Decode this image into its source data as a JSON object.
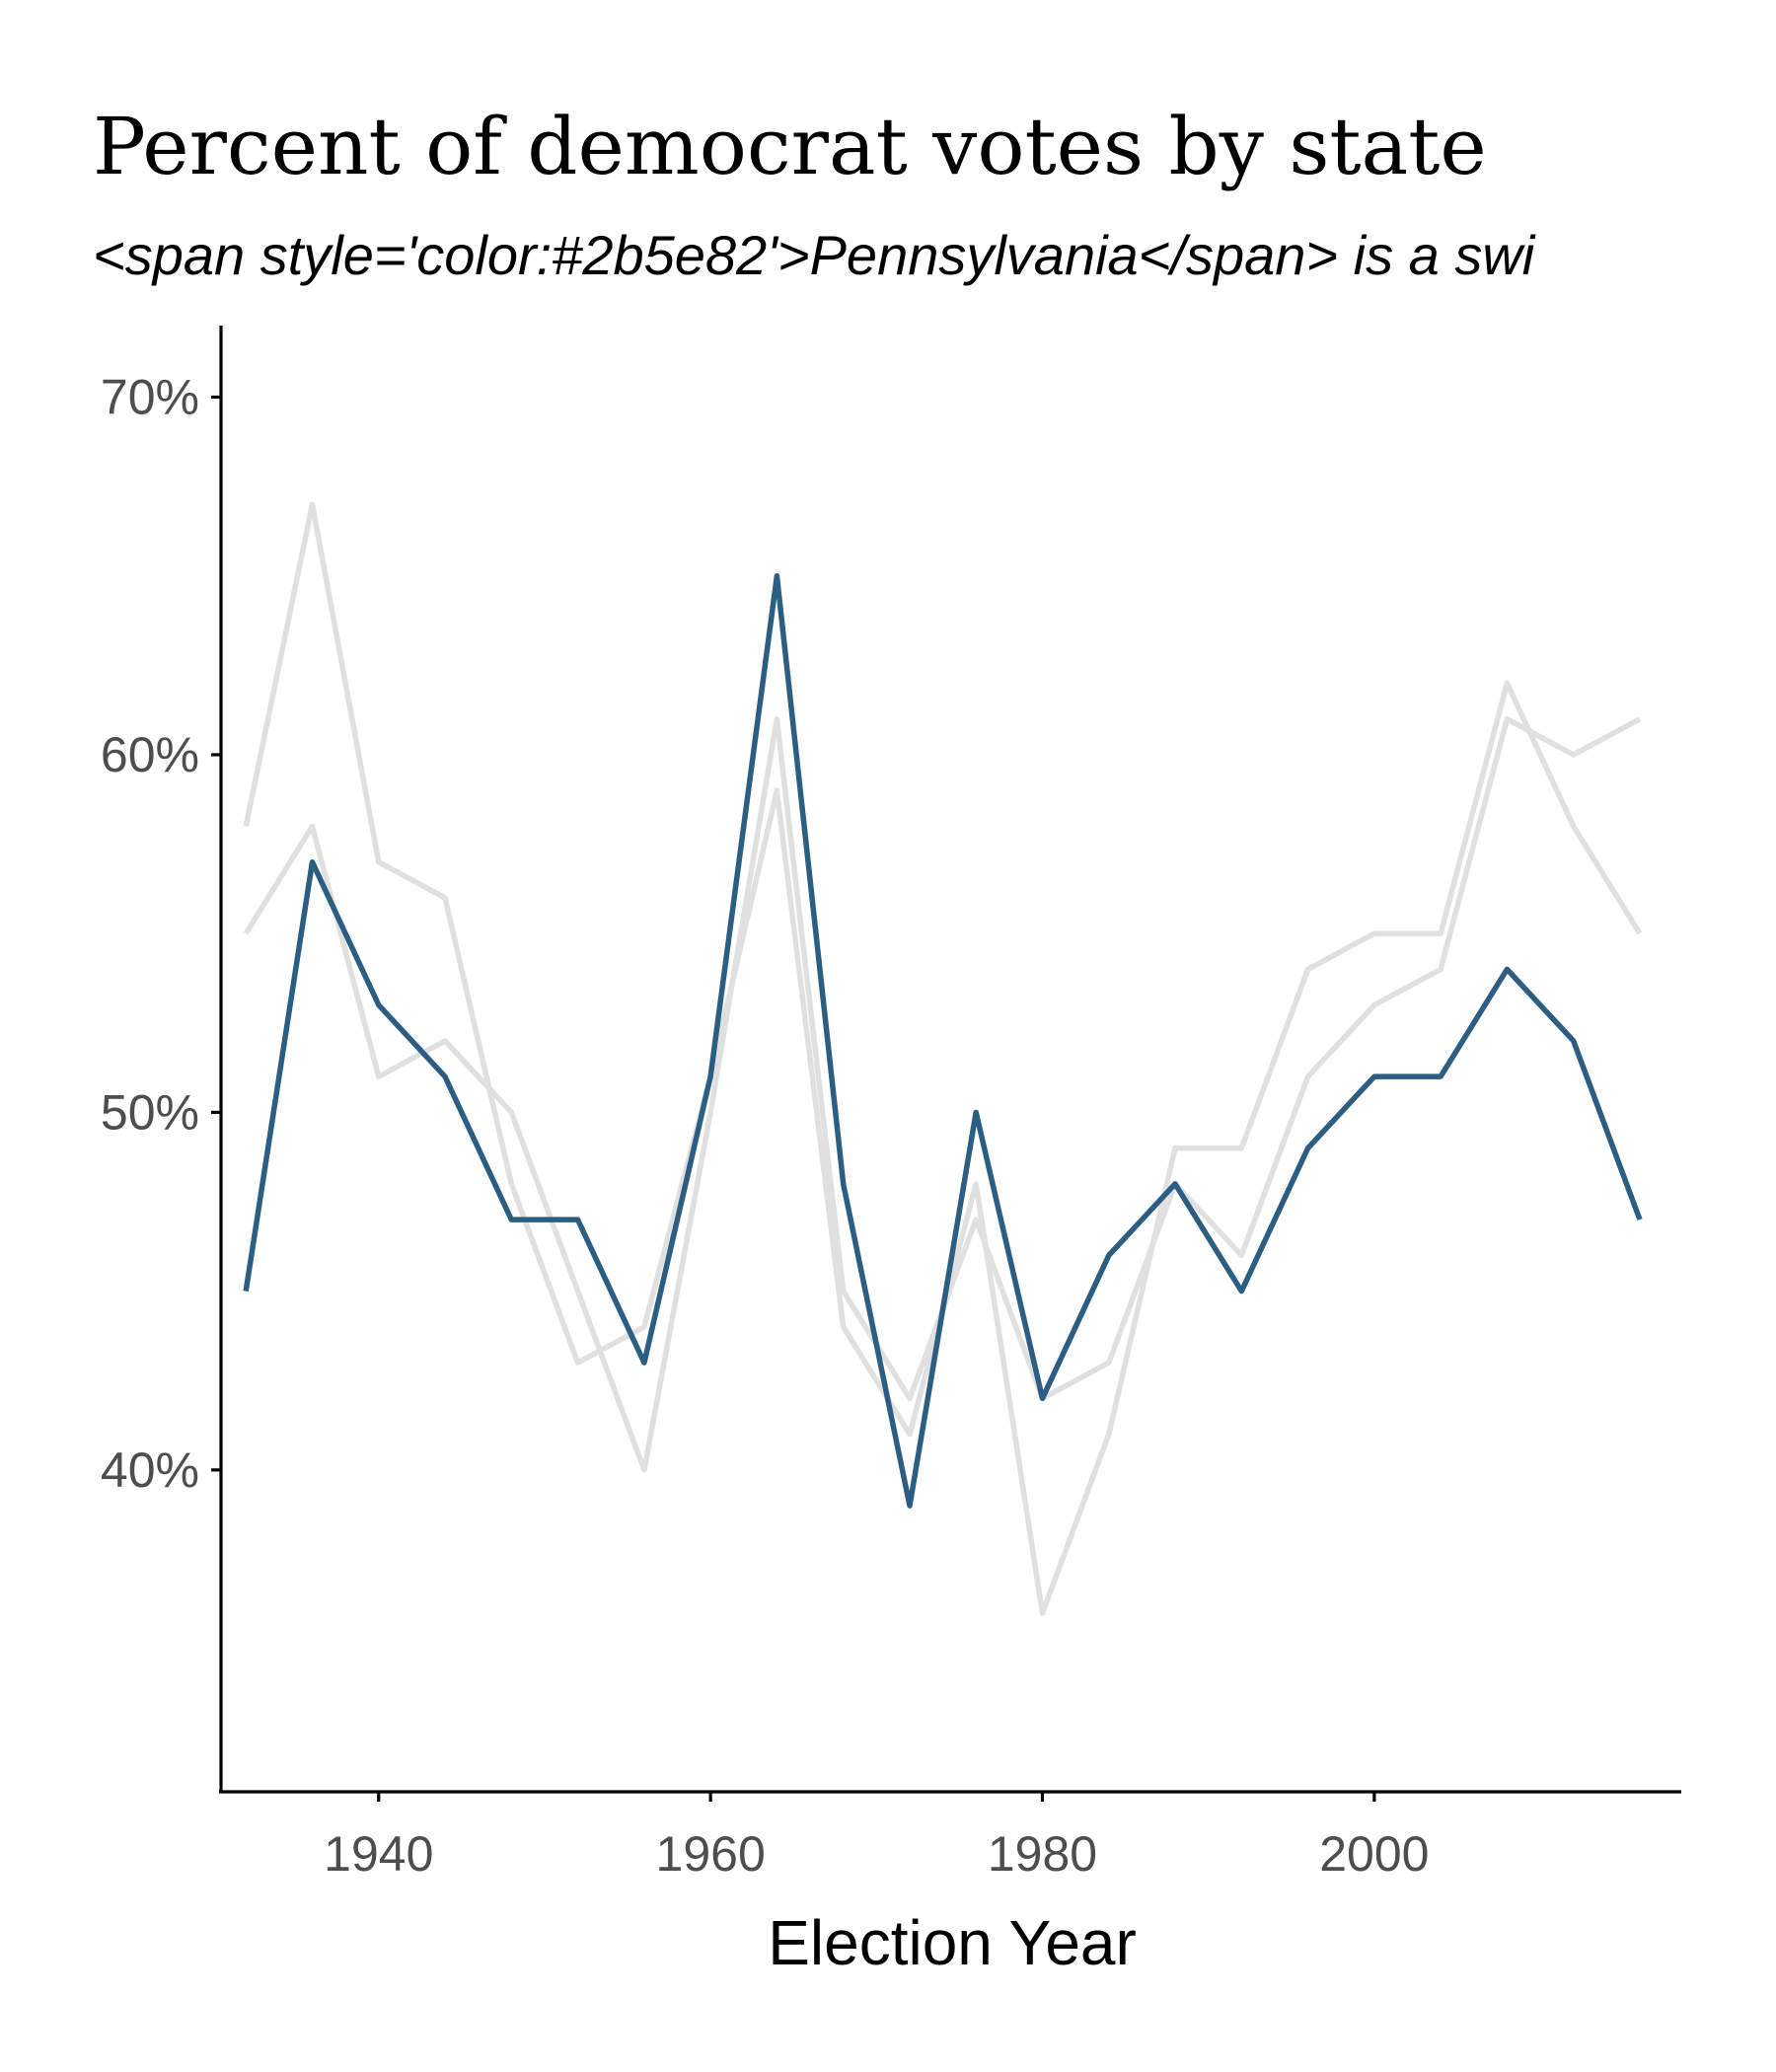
{
  "chart_data": {
    "type": "line",
    "title": "Percent of democrat votes by state",
    "subtitle": "<span style='color:#2b5e82'>Pennsylvania</span> is a swi",
    "xlabel": "Election Year",
    "ylabel": "",
    "xlim": [
      1930.5,
      2018.5
    ],
    "ylim": [
      31,
      72
    ],
    "x_ticks": [
      1940,
      1960,
      1980,
      2000
    ],
    "x_tick_labels": [
      "1940",
      "1960",
      "1980",
      "2000"
    ],
    "y_ticks": [
      40,
      50,
      60,
      70
    ],
    "y_tick_labels": [
      "40%",
      "50%",
      "60%",
      "70%"
    ],
    "grid": false,
    "legend": "none",
    "x": [
      1932,
      1936,
      1940,
      1944,
      1948,
      1952,
      1956,
      1960,
      1964,
      1968,
      1972,
      1976,
      1980,
      1984,
      1988,
      1992,
      1996,
      2000,
      2004,
      2008,
      2012,
      2016
    ],
    "series": [
      {
        "role": "context",
        "color": "#e0e0e0",
        "values": [
          58,
          67,
          57,
          56,
          48,
          43,
          44,
          51,
          59,
          44,
          41,
          48,
          36,
          41,
          49,
          49,
          54,
          55,
          55,
          62,
          58,
          55
        ]
      },
      {
        "role": "context",
        "color": "#e0e0e0",
        "values": [
          55,
          58,
          51,
          52,
          50,
          45,
          40,
          50,
          61,
          45,
          42,
          47,
          42,
          43,
          48,
          46,
          51,
          53,
          54,
          61,
          60,
          61
        ]
      },
      {
        "role": "highlight",
        "color": "#2b5e82",
        "values": [
          45,
          57,
          53,
          51,
          47,
          47,
          43,
          51,
          65,
          48,
          39,
          50,
          42,
          46,
          48,
          45,
          49,
          51,
          51,
          54,
          52,
          47
        ]
      }
    ]
  }
}
